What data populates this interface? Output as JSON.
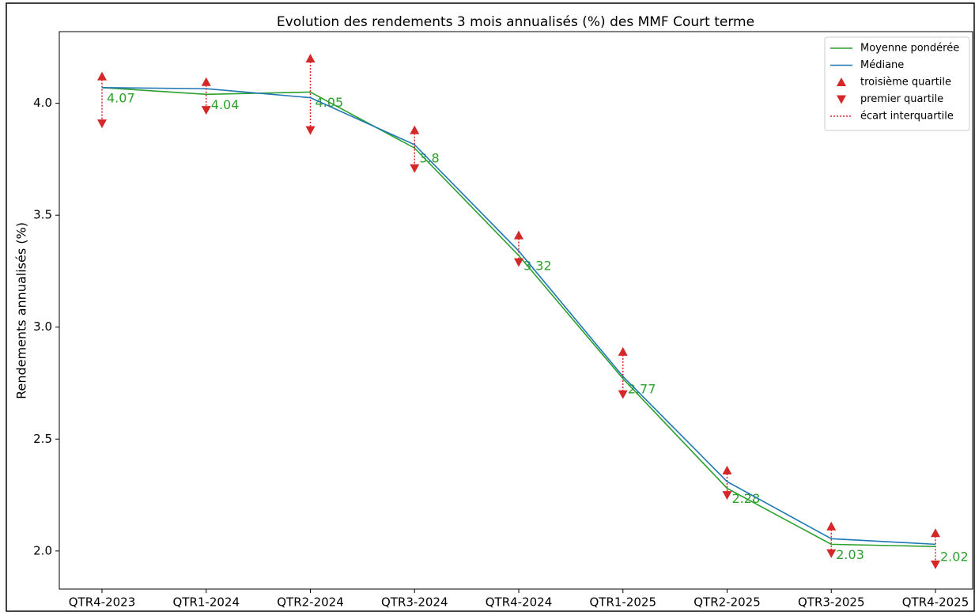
{
  "chart_data": {
    "type": "line",
    "title": "Evolution des rendements 3 mois annualisés (%) des MMF Court terme",
    "y_label": "Rendements annualisés (%)",
    "categories": [
      "QTR4-2023",
      "QTR1-2024",
      "QTR2-2024",
      "QTR3-2024",
      "QTR4-2024",
      "QTR1-2025",
      "QTR2-2025",
      "QTR3-2025",
      "QTR4-2025"
    ],
    "series": [
      {
        "name": "Moyenne pondérée",
        "color": "#2ca02c",
        "values": [
          4.07,
          4.04,
          4.05,
          3.8,
          3.32,
          2.77,
          2.28,
          2.03,
          2.02
        ],
        "data_labels": true
      },
      {
        "name": "Médiane",
        "color": "#1f77b4",
        "values": [
          4.07,
          4.065,
          4.025,
          3.815,
          3.34,
          2.78,
          2.31,
          2.055,
          2.03
        ]
      },
      {
        "name": "troisième quartile",
        "color": "#d62728",
        "marker": "triangle-up",
        "values": [
          4.12,
          4.095,
          4.2,
          3.88,
          3.41,
          2.89,
          2.36,
          2.11,
          2.08
        ]
      },
      {
        "name": "premier quartile",
        "color": "#d62728",
        "marker": "triangle-down",
        "values": [
          3.91,
          3.97,
          3.88,
          3.71,
          3.29,
          2.7,
          2.25,
          1.99,
          1.94
        ]
      }
    ],
    "iqr": {
      "name": "écart interquartile",
      "color": "#d62728"
    },
    "ylim": [
      1.83,
      4.32
    ],
    "yticks": [
      {
        "value": 2,
        "label": "2.0"
      },
      2.5,
      {
        "value": 3,
        "label": "3.0"
      },
      3.5,
      {
        "value": 4,
        "label": "4.0"
      }
    ],
    "legend": "upper right",
    "grid": false
  }
}
